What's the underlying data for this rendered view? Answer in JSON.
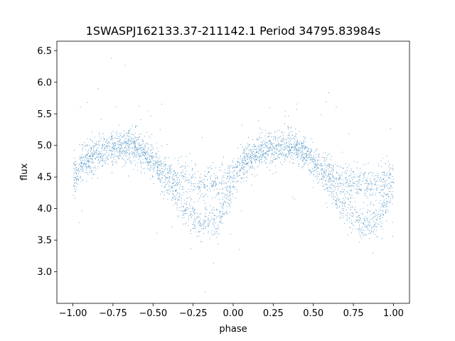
{
  "chart_data": {
    "type": "scatter",
    "title": "1SWASPJ162133.37-211142.1 Period 34795.83984s",
    "xlabel": "phase",
    "ylabel": "flux",
    "xlim": [
      -1.1,
      1.1
    ],
    "ylim": [
      2.5,
      6.65
    ],
    "xticks": [
      -1.0,
      -0.75,
      -0.5,
      -0.25,
      0.0,
      0.25,
      0.5,
      0.75,
      1.0
    ],
    "xtick_labels": [
      "−1.00",
      "−0.75",
      "−0.50",
      "−0.25",
      "0.00",
      "0.25",
      "0.50",
      "0.75",
      "1.00"
    ],
    "yticks": [
      3.0,
      3.5,
      4.0,
      4.5,
      5.0,
      5.5,
      6.0,
      6.5
    ],
    "ytick_labels": [
      "3.0",
      "3.5",
      "4.0",
      "4.5",
      "5.0",
      "5.5",
      "6.0",
      "6.5"
    ],
    "grid": false,
    "point_color": "#1f77b4",
    "series": [
      {
        "phase": [
          -1.0,
          -0.95,
          -0.9,
          -0.85,
          -0.8,
          -0.75,
          -0.7,
          -0.65,
          -0.6,
          -0.55,
          -0.5,
          -0.45,
          -0.4,
          -0.35,
          -0.3,
          -0.25,
          -0.2,
          -0.15,
          -0.1,
          -0.05,
          0.0,
          0.05,
          0.1,
          0.15,
          0.2,
          0.25,
          0.3,
          0.35,
          0.4,
          0.45,
          0.5,
          0.55,
          0.6,
          0.65,
          0.7,
          0.75,
          0.8,
          0.85,
          0.9,
          0.95,
          1.0
        ],
        "upper_branch_flux": [
          4.55,
          4.7,
          4.8,
          4.88,
          4.93,
          4.97,
          5.0,
          5.0,
          4.95,
          4.87,
          4.77,
          4.65,
          4.55,
          4.48,
          4.44,
          4.42,
          4.41,
          4.41,
          4.43,
          4.48,
          4.58,
          4.7,
          4.8,
          4.88,
          4.93,
          4.97,
          5.0,
          5.0,
          4.95,
          4.87,
          4.77,
          4.65,
          4.55,
          4.48,
          4.44,
          4.42,
          4.41,
          4.41,
          4.43,
          4.48,
          4.55
        ],
        "lower_branch_flux": [
          4.4,
          4.7,
          4.8,
          4.88,
          4.93,
          4.97,
          5.0,
          5.0,
          4.95,
          4.85,
          4.72,
          4.55,
          4.35,
          4.15,
          3.97,
          3.85,
          3.78,
          3.78,
          3.85,
          4.05,
          4.35,
          4.7,
          4.8,
          4.88,
          4.93,
          4.97,
          5.0,
          5.0,
          4.95,
          4.85,
          4.72,
          4.55,
          4.35,
          4.15,
          3.97,
          3.85,
          3.78,
          3.78,
          3.85,
          4.05,
          4.35
        ]
      }
    ]
  }
}
